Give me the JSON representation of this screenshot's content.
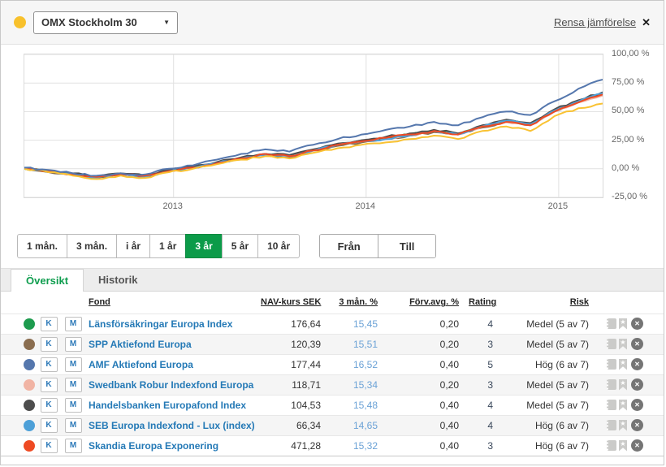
{
  "header": {
    "series_dot_color": "#f8c12c",
    "benchmark_select": {
      "value": "OMX Stockholm 30"
    },
    "dropdown_caret": "▼",
    "clear_comparison_label": "Rensa jämförelse",
    "close_glyph": "✕"
  },
  "toolbar": {
    "ranges": [
      {
        "label": "1 mån.",
        "active": false
      },
      {
        "label": "3 mån.",
        "active": false
      },
      {
        "label": "i år",
        "active": false
      },
      {
        "label": "1 år",
        "active": false
      },
      {
        "label": "3 år",
        "active": true
      },
      {
        "label": "5 år",
        "active": false
      },
      {
        "label": "10 år",
        "active": false
      }
    ],
    "active_color": "#0c9b49",
    "from_label": "Från",
    "to_label": "Till"
  },
  "tabs": [
    {
      "label": "Översikt",
      "active": true
    },
    {
      "label": "Historik",
      "active": false
    }
  ],
  "table": {
    "columns": {
      "fund": "Fond",
      "nav": "NAV-kurs SEK",
      "three_month": "3 mån. %",
      "fee": "Förv.avg. %",
      "rating": "Rating",
      "risk": "Risk"
    },
    "compare_button": "K",
    "monitor_button": "M",
    "bookmark_glyph": "★",
    "remove_glyph": "✕",
    "rows": [
      {
        "color": "#1d9b4e",
        "name": "Länsförsäkringar Europa Index",
        "nav": "176,64",
        "three_month": "15,45",
        "fee": "0,20",
        "rating": "4",
        "risk": "Medel (5 av 7)"
      },
      {
        "color": "#8a6d4f",
        "name": "SPP Aktiefond Europa",
        "nav": "120,39",
        "three_month": "15,51",
        "fee": "0,20",
        "rating": "3",
        "risk": "Medel (5 av 7)"
      },
      {
        "color": "#5577ad",
        "name": "AMF Aktiefond Europa",
        "nav": "177,44",
        "three_month": "16,52",
        "fee": "0,40",
        "rating": "5",
        "risk": "Hög (6 av 7)"
      },
      {
        "color": "#f1b4a4",
        "name": "Swedbank Robur Indexfond Europa",
        "nav": "118,71",
        "three_month": "15,34",
        "fee": "0,20",
        "rating": "3",
        "risk": "Medel (5 av 7)"
      },
      {
        "color": "#4d4d4d",
        "name": "Handelsbanken Europafond Index",
        "nav": "104,53",
        "three_month": "15,48",
        "fee": "0,40",
        "rating": "4",
        "risk": "Medel (5 av 7)"
      },
      {
        "color": "#4da0d8",
        "name": "SEB Europa Indexfond - Lux (index)",
        "nav": "66,34",
        "three_month": "14,65",
        "fee": "0,40",
        "rating": "4",
        "risk": "Hög (6 av 7)"
      },
      {
        "color": "#ee4a23",
        "name": "Skandia Europa Exponering",
        "nav": "471,28",
        "three_month": "15,32",
        "fee": "0,40",
        "rating": "3",
        "risk": "Hög (6 av 7)"
      }
    ]
  },
  "chart_data": {
    "type": "line",
    "unit": "%",
    "grid": true,
    "x_axis": {
      "labels": [
        "2013",
        "2014",
        "2015"
      ],
      "positions": [
        0.258,
        0.591,
        0.924
      ]
    },
    "y_axis": {
      "ticks": [
        100,
        75,
        50,
        25,
        0,
        -25
      ],
      "tick_labels": [
        "100,00 %",
        "75,00 %",
        "50,00 %",
        "25,00 %",
        "0,00 %",
        "-25,00 %"
      ],
      "range": [
        -25,
        100
      ]
    },
    "series": [
      {
        "name": "Länsförsäkringar Europa Index",
        "color": "#1d9b4e",
        "values": [
          0,
          -2,
          -5,
          -7,
          -5,
          -6,
          -2,
          1,
          5,
          9,
          13,
          11,
          16,
          21,
          24,
          27,
          30,
          33,
          30,
          37,
          42,
          39,
          51,
          59,
          66
        ]
      },
      {
        "name": "SPP Aktiefond Europa",
        "color": "#8a6d4f",
        "values": [
          0,
          -3,
          -5,
          -8,
          -5,
          -7,
          -2,
          1,
          5,
          8,
          12,
          10,
          16,
          20,
          23,
          26,
          29,
          32,
          30,
          36,
          41,
          38,
          50,
          58,
          66
        ]
      },
      {
        "name": "Swedbank Robur Indexfond Europa",
        "color": "#f1b4a4",
        "values": [
          0,
          -2,
          -5,
          -7,
          -5,
          -6,
          -1,
          1,
          5,
          9,
          12,
          11,
          16,
          21,
          24,
          26,
          29,
          33,
          30,
          37,
          41,
          38,
          50,
          58,
          64
        ]
      },
      {
        "name": "Handelsbanken Europafond Index",
        "color": "#4d4d4d",
        "values": [
          0,
          -2,
          -4,
          -7,
          -4,
          -6,
          -1,
          2,
          6,
          10,
          13,
          12,
          17,
          22,
          25,
          28,
          31,
          34,
          31,
          38,
          43,
          40,
          52,
          60,
          67
        ]
      },
      {
        "name": "SEB Europa Indexfond - Lux (index)",
        "color": "#4da0d8",
        "values": [
          0,
          -2,
          -5,
          -8,
          -5,
          -7,
          -2,
          1,
          5,
          9,
          12,
          11,
          16,
          21,
          24,
          26,
          29,
          33,
          30,
          37,
          42,
          39,
          51,
          59,
          66
        ]
      },
      {
        "name": "Skandia Europa Exponering",
        "color": "#ee4a23",
        "values": [
          0,
          -2,
          -5,
          -7,
          -5,
          -6,
          -2,
          1,
          5,
          9,
          13,
          11,
          16,
          21,
          24,
          27,
          30,
          33,
          30,
          37,
          41,
          38,
          50,
          58,
          65
        ]
      },
      {
        "name": "OMX Stockholm 30",
        "color": "#f9c232",
        "values": [
          0,
          -3,
          -6,
          -9,
          -6,
          -8,
          -3,
          0,
          4,
          8,
          11,
          9,
          14,
          18,
          21,
          23,
          26,
          29,
          26,
          33,
          37,
          33,
          46,
          53,
          57
        ]
      },
      {
        "name": "AMF Aktiefond Europa",
        "color": "#5577ad",
        "values": [
          1,
          -1,
          -4,
          -6,
          -4,
          -5,
          0,
          3,
          8,
          13,
          17,
          15,
          21,
          26,
          30,
          34,
          37,
          41,
          38,
          45,
          50,
          47,
          59,
          70,
          78
        ]
      }
    ]
  }
}
